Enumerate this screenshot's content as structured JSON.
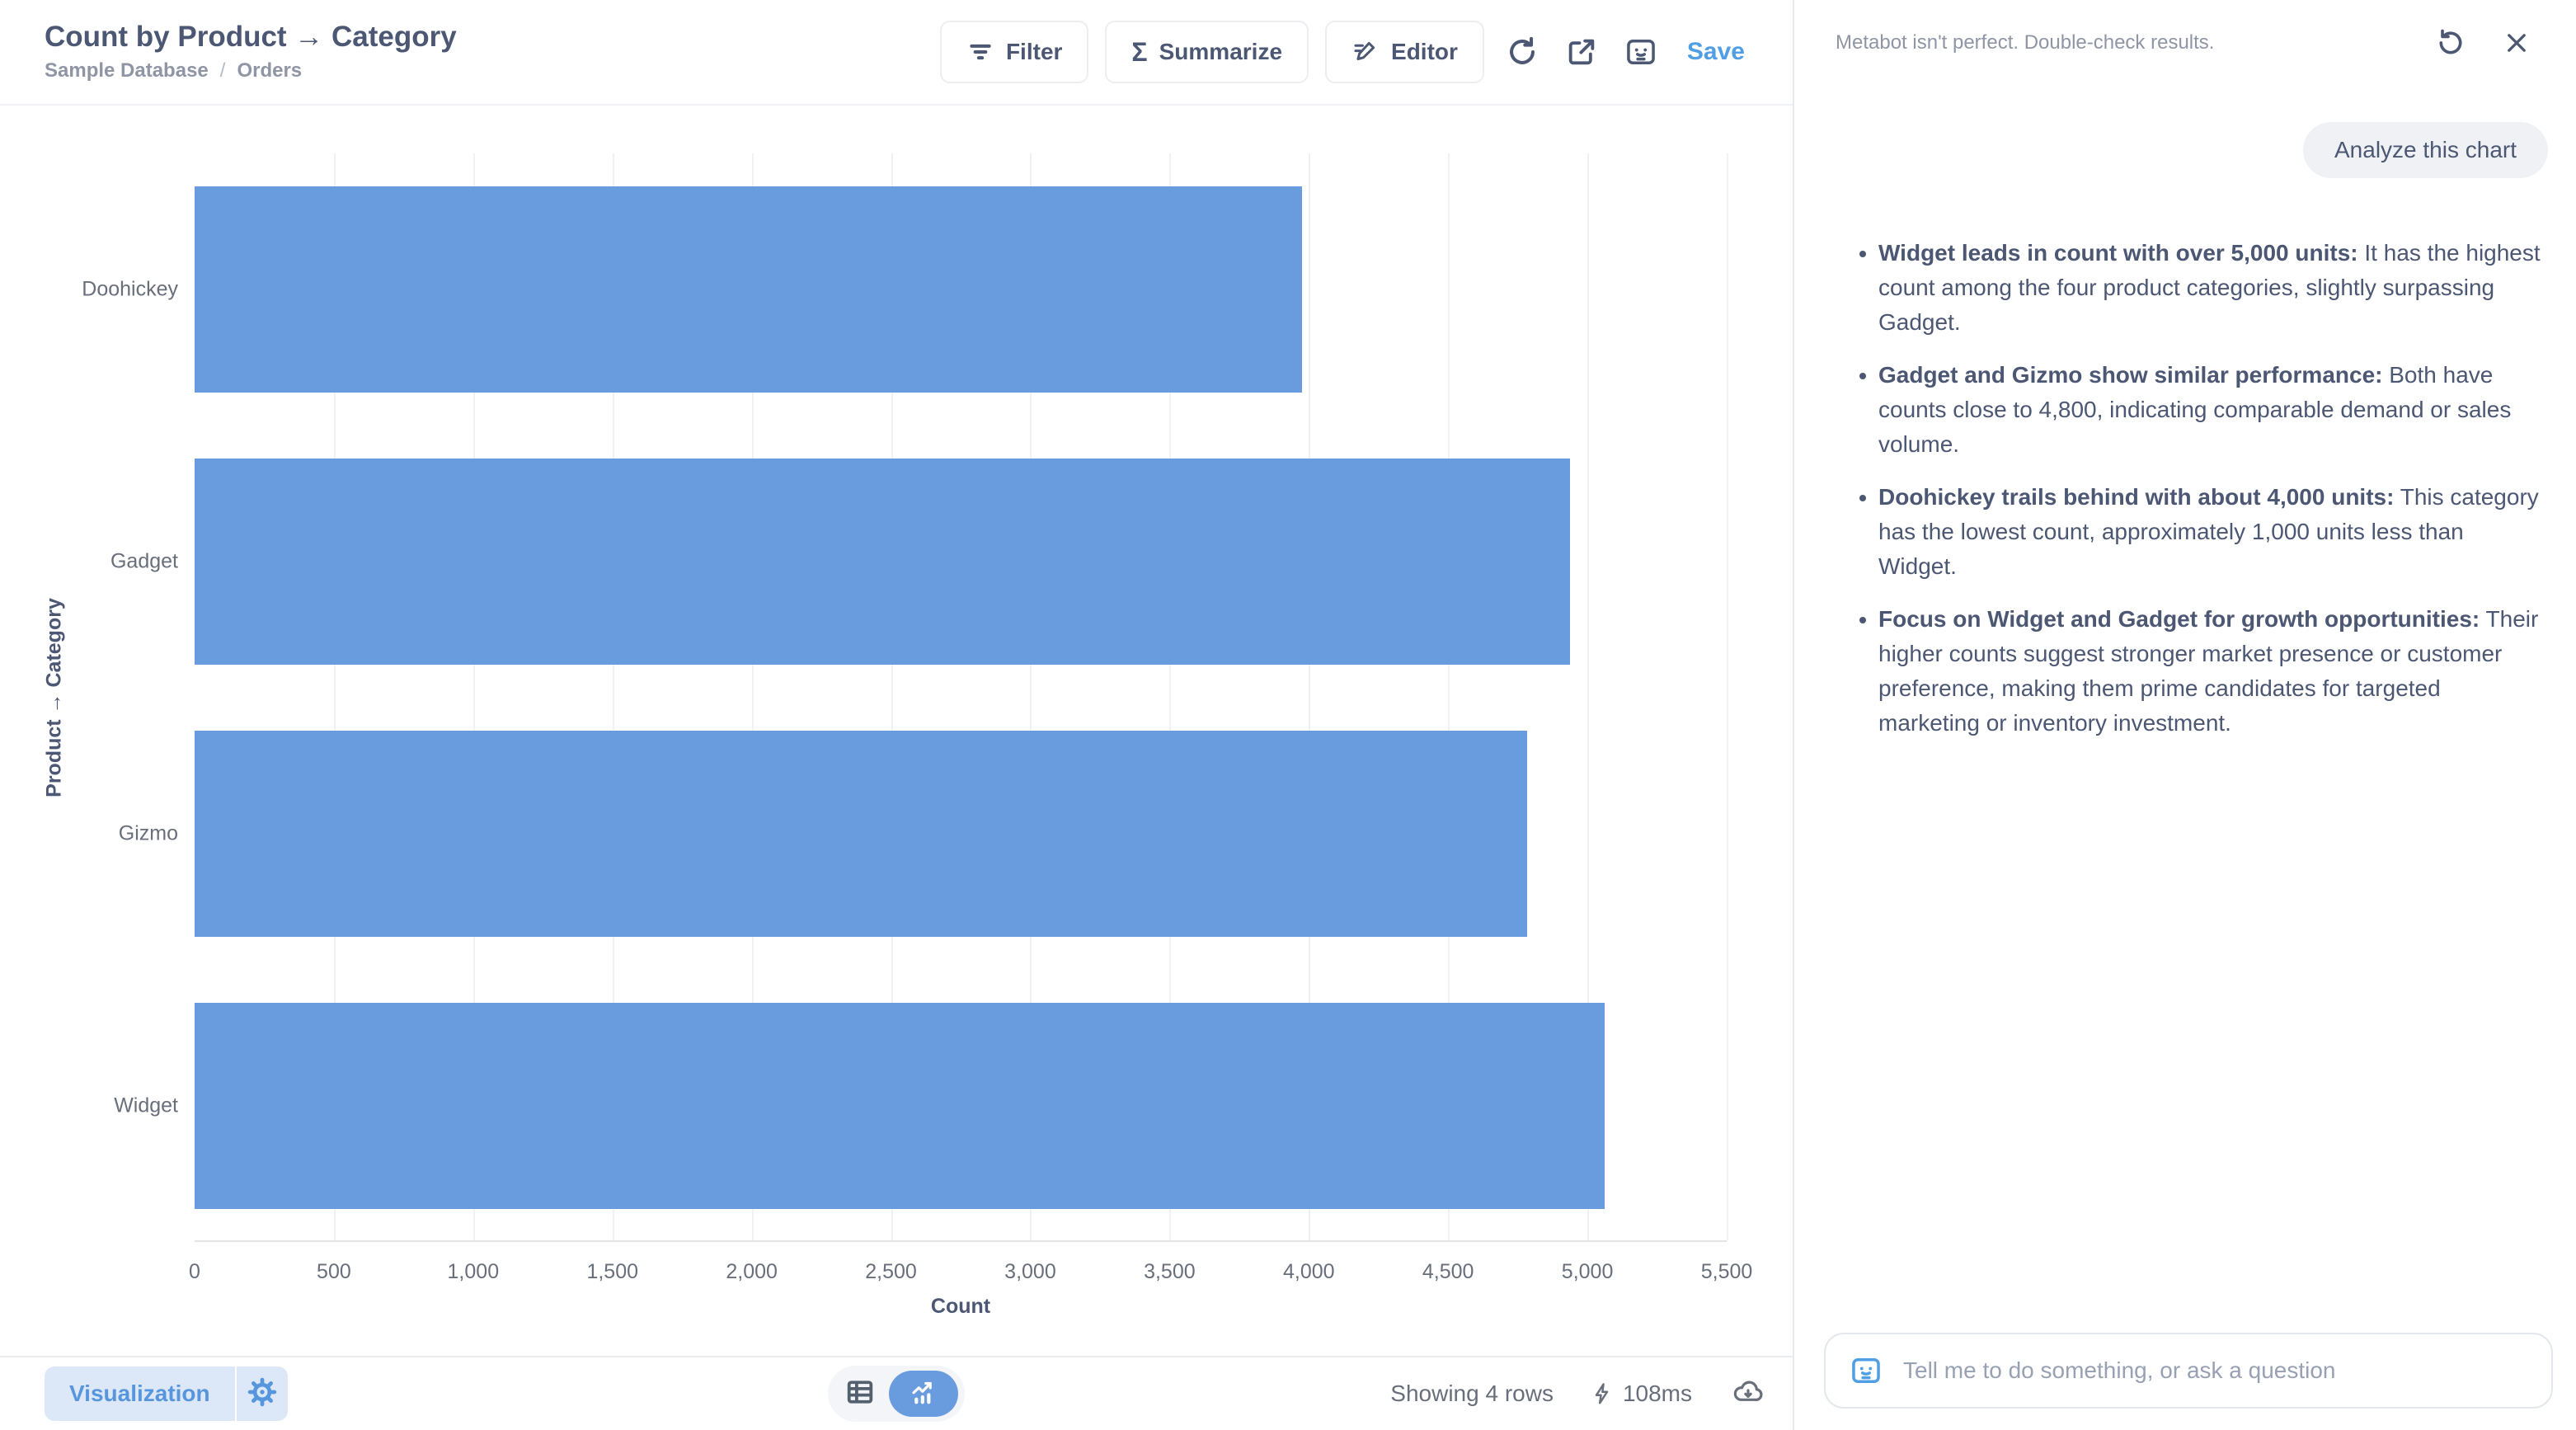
{
  "header": {
    "title": "Count by Product → Category",
    "breadcrumb": {
      "database": "Sample Database",
      "separator": "/",
      "table": "Orders"
    },
    "toolbar": {
      "filter_label": "Filter",
      "summarize_label": "Summarize",
      "editor_label": "Editor",
      "save_label": "Save"
    }
  },
  "icons": {
    "summarize_sigma": "Σ"
  },
  "chart_data": {
    "type": "bar",
    "orientation": "horizontal",
    "title": "Count by Product → Category",
    "categories": [
      "Doohickey",
      "Gadget",
      "Gizmo",
      "Widget"
    ],
    "values": [
      3976,
      4939,
      4784,
      5061
    ],
    "series_name": "Count",
    "xlabel": "Count",
    "ylabel": "Product → Category",
    "xlim": [
      0,
      5500
    ],
    "x_ticks": [
      0,
      500,
      1000,
      1500,
      2000,
      2500,
      3000,
      3500,
      4000,
      4500,
      5000,
      5500
    ],
    "x_tick_labels": [
      "0",
      "500",
      "1,000",
      "1,500",
      "2,000",
      "2,500",
      "3,000",
      "3,500",
      "4,000",
      "4,500",
      "5,000",
      "5,500"
    ],
    "grid": true,
    "legend": "none",
    "bar_color": "#699CDE"
  },
  "bottombar": {
    "visualization_label": "Visualization",
    "status": {
      "rows": "Showing 4 rows",
      "duration": "108ms"
    }
  },
  "metabot_panel": {
    "disclaimer": "Metabot isn't perfect. Double-check results.",
    "user_message": "Analyze this chart",
    "insights": [
      {
        "lead": "Widget leads in count with over 5,000 units:",
        "text": "It has the highest count among the four product categories, slightly surpassing Gadget."
      },
      {
        "lead": "Gadget and Gizmo show similar performance:",
        "text": "Both have counts close to 4,800, indicating comparable demand or sales volume."
      },
      {
        "lead": "Doohickey trails behind with about 4,000 units:",
        "text": "This category has the lowest count, approximately 1,000 units less than Widget."
      },
      {
        "lead": "Focus on Widget and Gadget for growth opportunities:",
        "text": "Their higher counts suggest stronger market presence or customer preference, making them prime candidates for targeted marketing or inventory investment."
      }
    ],
    "input_placeholder": "Tell me to do something, or ask a question"
  },
  "colors": {
    "brand_blue": "#509EE3",
    "bar_blue": "#699CDE",
    "text_dark": "#4C5773",
    "text_medium": "#696E7B",
    "text_light": "#8F95A5",
    "viz_button_bg": "#DCE8F8",
    "bubble_bg": "#EFF1F4",
    "gridline": "#F1F1F2"
  }
}
